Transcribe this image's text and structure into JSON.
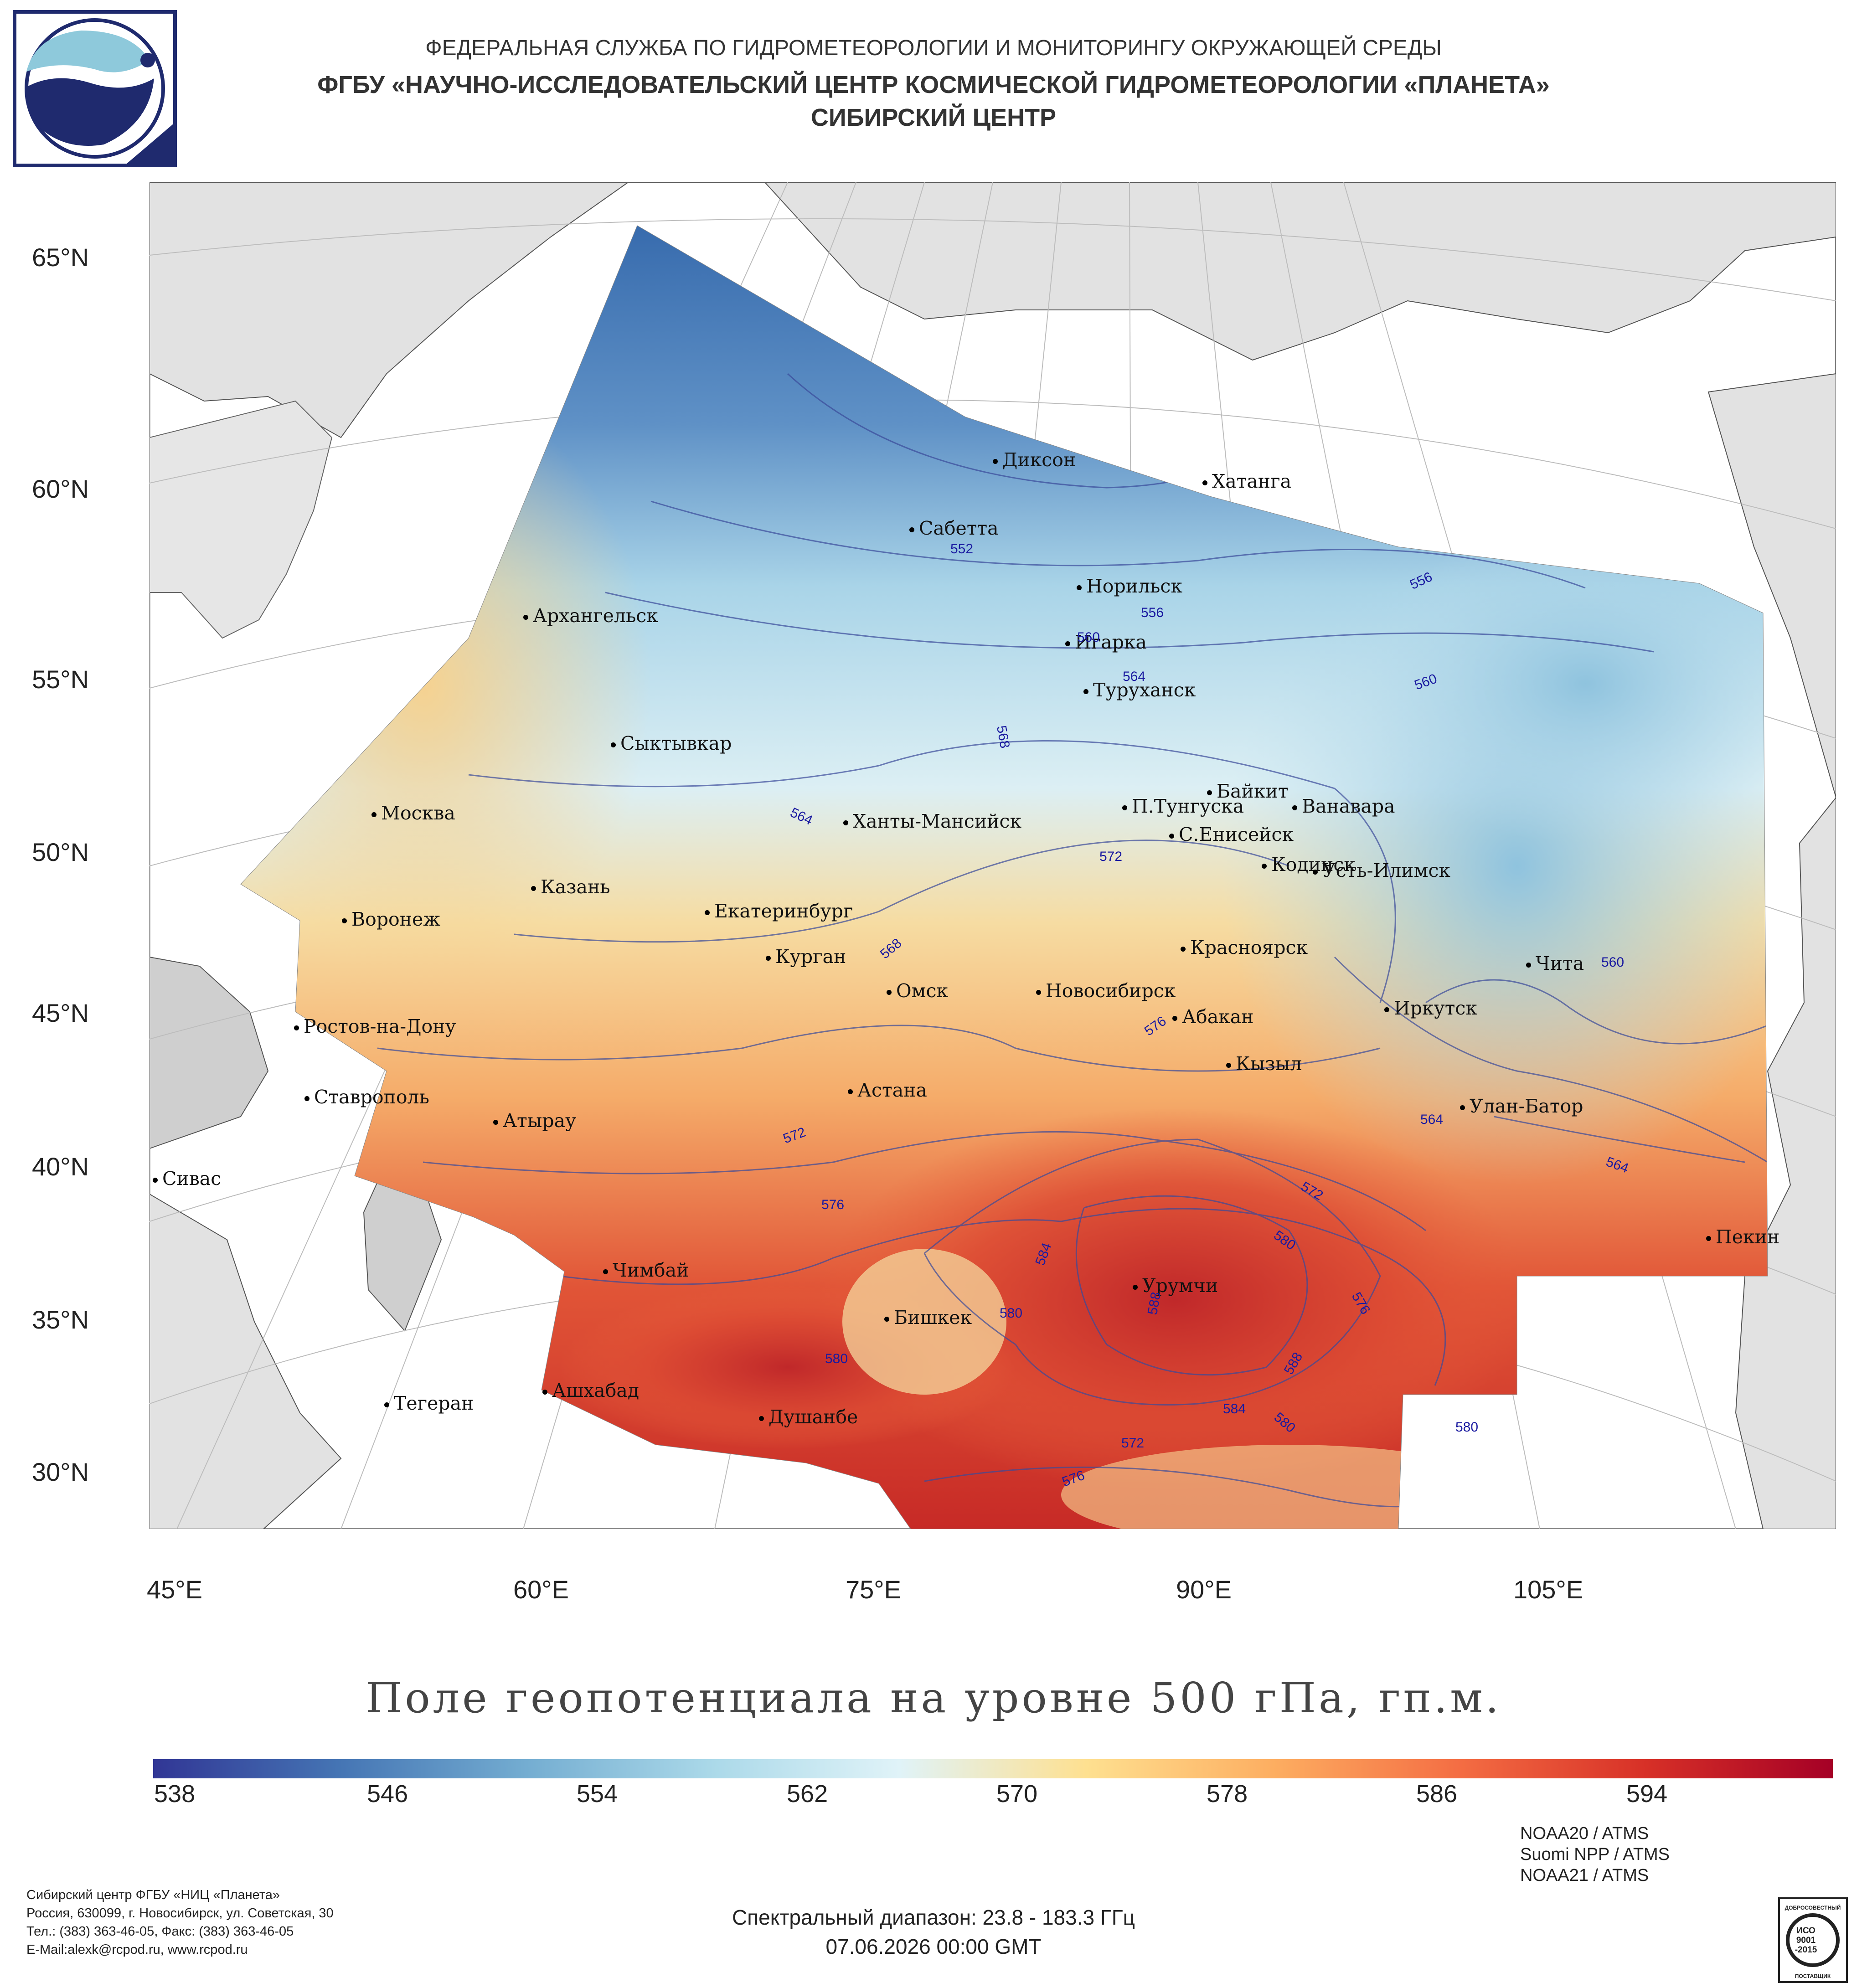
{
  "header": {
    "line1": "ФЕДЕРАЛЬНАЯ СЛУЖБА ПО ГИДРОМЕТЕОРОЛОГИИ И МОНИТОРИНГУ ОКРУЖАЮЩЕЙ СРЕДЫ",
    "line2": "ФГБУ «НАУЧНО-ИССЛЕДОВАТЕЛЬСКИЙ ЦЕНТР КОСМИЧЕСКОЙ ГИДРОМЕТЕОРОЛОГИИ «ПЛАНЕТА»",
    "line3": "СИБИРСКИЙ ЦЕНТР"
  },
  "map": {
    "latitude_labels": [
      "65°N",
      "60°N",
      "55°N",
      "50°N",
      "45°N",
      "40°N",
      "35°N",
      "30°N"
    ],
    "longitude_labels": [
      "45°E",
      "60°E",
      "75°E",
      "90°E",
      "105°E"
    ],
    "cities": [
      "Диксон",
      "Хатанга",
      "Сабетта",
      "Норильск",
      "Архангельск",
      "Игарка",
      "Туруханск",
      "Сыктывкар",
      "Байкит",
      "П.Тунгуска",
      "Ванавара",
      "Москва",
      "Ханты-Мансийск",
      "С.Енисейск",
      "Кодинск",
      "Усть-Илимск",
      "Казань",
      "Екатеринбург",
      "Воронеж",
      "Красноярск",
      "Курган",
      "Чита",
      "Омск",
      "Новосибирск",
      "Иркутск",
      "Ростов-на-Дону",
      "Абакан",
      "Кызыл",
      "Ставрополь",
      "Астана",
      "Улан-Батор",
      "Атырау",
      "Сивас",
      "Пекин",
      "Чимбай",
      "Урумчи",
      "Бишкек",
      "Ашхабад",
      "Тегеран",
      "Душанбе"
    ],
    "isoline_labels": [
      "552",
      "556",
      "556",
      "560",
      "560",
      "564",
      "568",
      "564",
      "572",
      "568",
      "576",
      "572",
      "576",
      "572",
      "580",
      "584",
      "580",
      "588",
      "576",
      "580",
      "588",
      "584",
      "580",
      "572",
      "576",
      "560",
      "564",
      "564",
      "580"
    ]
  },
  "caption": "Поле геопотенциала на уровне 500 гПа, гп.м.",
  "colorbar": {
    "ticks": [
      "538",
      "546",
      "554",
      "562",
      "570",
      "578",
      "586",
      "594"
    ],
    "colors": [
      "#313695",
      "#4575b4",
      "#74add1",
      "#abd9e9",
      "#e0f3f8",
      "#fee090",
      "#fdae61",
      "#f46d43",
      "#d73027",
      "#a50026"
    ]
  },
  "footer": {
    "org": "Сибирский центр ФГБУ «НИЦ «Планета»",
    "address": "Россия, 630099, г. Новосибирск, ул. Советская, 30",
    "phone": "Тел.: (383) 363-46-05, Факс: (383) 363-46-05",
    "email": "E-Mail:alexk@rcpod.ru, www.rcpod.ru",
    "spectral": "Спектральный диапазон: 23.8 - 183.3 ГГц",
    "datetime": "07.06.2026 00:00 GMT",
    "sensors": [
      "NOAA20 / ATMS",
      "Suomi NPP / ATMS",
      "NOAA21 / ATMS"
    ],
    "cert_lines": [
      "ДОБРОСОВЕСТНЫЙ",
      "ИСО",
      "9001",
      "-2015",
      "ПОСТАВЩИК"
    ]
  }
}
